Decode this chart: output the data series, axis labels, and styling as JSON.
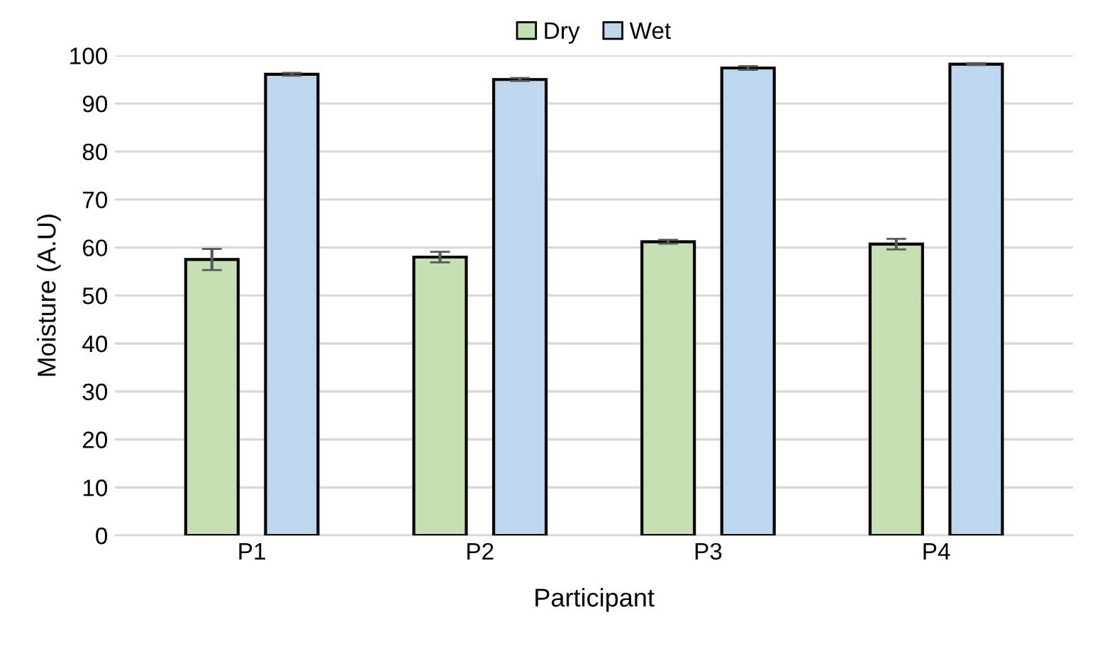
{
  "chart_data": {
    "type": "bar",
    "xlabel": "Participant",
    "ylabel": "Moisture (A.U)",
    "categories": [
      "P1",
      "P2",
      "P3",
      "P4"
    ],
    "series": [
      {
        "name": "Dry",
        "color": "#c6e0b4",
        "values": [
          57.5,
          58.0,
          61.2,
          60.7
        ],
        "errors": [
          2.2,
          1.1,
          0.4,
          1.1
        ]
      },
      {
        "name": "Wet",
        "color": "#bdd7ee",
        "values": [
          96.1,
          95.0,
          97.4,
          98.2
        ],
        "errors": [
          0.3,
          0.3,
          0.4,
          0.2
        ]
      }
    ],
    "ylim": [
      0,
      100
    ],
    "yticks": [
      0,
      10,
      20,
      30,
      40,
      50,
      60,
      70,
      80,
      90,
      100
    ],
    "grid": "y",
    "legend": "top"
  }
}
